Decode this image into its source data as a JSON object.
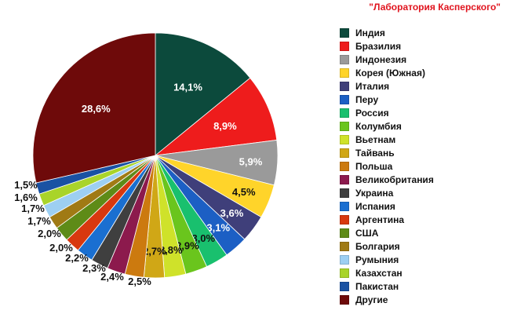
{
  "source": "\"Лаборатория Касперского\"",
  "chart_data": {
    "type": "pie",
    "title": "",
    "legend_position": "right",
    "slices": [
      {
        "label": "Индия",
        "value": 14.1,
        "value_text": "14,1%",
        "color": "#0c4a3c"
      },
      {
        "label": "Бразилия",
        "value": 8.9,
        "value_text": "8,9%",
        "color": "#ee1c1c"
      },
      {
        "label": "Индонезия",
        "value": 5.9,
        "value_text": "5,9%",
        "color": "#9a9a9a"
      },
      {
        "label": "Корея (Южная)",
        "value": 4.5,
        "value_text": "4,5%",
        "color": "#ffd42a"
      },
      {
        "label": "Италия",
        "value": 3.6,
        "value_text": "3,6%",
        "color": "#3f3f7a"
      },
      {
        "label": "Перу",
        "value": 3.1,
        "value_text": "3,1%",
        "color": "#1c5fc4"
      },
      {
        "label": "Россия",
        "value": 3.0,
        "value_text": "3,0%",
        "color": "#19c06e"
      },
      {
        "label": "Колумбия",
        "value": 2.9,
        "value_text": "2,9%",
        "color": "#6ac51d"
      },
      {
        "label": "Вьетнам",
        "value": 2.8,
        "value_text": "2,8%",
        "color": "#cfe22a"
      },
      {
        "label": "Тайвань",
        "value": 2.7,
        "value_text": "2,7%",
        "color": "#d0a716"
      },
      {
        "label": "Польша",
        "value": 2.5,
        "value_text": "2,5%",
        "color": "#cc7a0f"
      },
      {
        "label": "Великобритания",
        "value": 2.4,
        "value_text": "2,4%",
        "color": "#8c1a4d"
      },
      {
        "label": "Украина",
        "value": 2.3,
        "value_text": "2,3%",
        "color": "#3f3f3f"
      },
      {
        "label": "Испания",
        "value": 2.2,
        "value_text": "2,2%",
        "color": "#1a6fd1"
      },
      {
        "label": "Аргентина",
        "value": 2.0,
        "value_text": "2,0%",
        "color": "#d8380f"
      },
      {
        "label": "США",
        "value": 2.0,
        "value_text": "2,0%",
        "color": "#5e8b17"
      },
      {
        "label": "Болгария",
        "value": 1.7,
        "value_text": "1,7%",
        "color": "#a07a14"
      },
      {
        "label": "Румыния",
        "value": 1.7,
        "value_text": "1,7%",
        "color": "#9dcff2"
      },
      {
        "label": "Казахстан",
        "value": 1.6,
        "value_text": "1,6%",
        "color": "#a9d42a"
      },
      {
        "label": "Пакистан",
        "value": 1.5,
        "value_text": "1,5%",
        "color": "#1a52a3"
      },
      {
        "label": "Другие",
        "value": 28.6,
        "value_text": "28,6%",
        "color": "#6e0a0a"
      }
    ]
  }
}
